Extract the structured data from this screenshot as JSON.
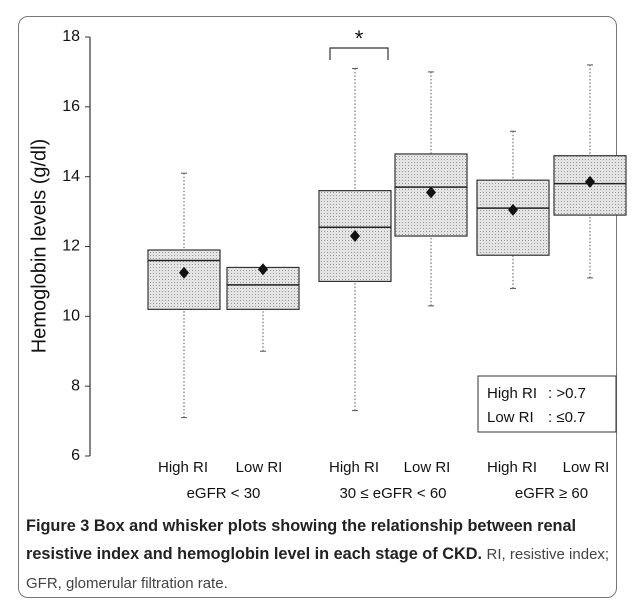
{
  "chart_data": {
    "type": "box",
    "y_label": "Hemoglobin levels (g/dl)",
    "ylim": [
      6,
      18
    ],
    "yticks": [
      6,
      8,
      10,
      12,
      14,
      16,
      18
    ],
    "categories": [
      "High RI",
      "Low RI",
      "High RI",
      "Low RI",
      "High RI",
      "Low RI"
    ],
    "groups": [
      "eGFR < 30",
      "30 ≤ eGFR < 60",
      "eGFR ≥ 60"
    ],
    "boxes": [
      {
        "low": 7.1,
        "q1": 10.2,
        "median": 11.6,
        "q3": 11.9,
        "high": 14.1,
        "mean": 11.25
      },
      {
        "low": 9.0,
        "q1": 10.2,
        "median": 10.9,
        "q3": 11.4,
        "high": 11.4,
        "mean": 11.35
      },
      {
        "low": 7.3,
        "q1": 11.0,
        "median": 12.55,
        "q3": 13.6,
        "high": 17.1,
        "mean": 12.3
      },
      {
        "low": 10.3,
        "q1": 12.3,
        "median": 13.7,
        "q3": 14.65,
        "high": 17.0,
        "mean": 13.55
      },
      {
        "low": 10.8,
        "q1": 11.75,
        "median": 13.1,
        "q3": 13.9,
        "high": 15.3,
        "mean": 13.05
      },
      {
        "low": 11.1,
        "q1": 12.9,
        "median": 13.8,
        "q3": 14.6,
        "high": 17.2,
        "mean": 13.85
      }
    ],
    "significance": "*",
    "legend": [
      {
        "name": "High RI",
        "text": ": >0.7"
      },
      {
        "name": "Low RI",
        "text": ": ≤0.7"
      }
    ]
  },
  "caption": {
    "label": "Figure 3",
    "bold": "Box and whisker plots showing the relationship between renal resistive index and hemoglobin level in each stage of CKD.",
    "text": "RI, resistive index; GFR, glomerular filtration rate."
  }
}
